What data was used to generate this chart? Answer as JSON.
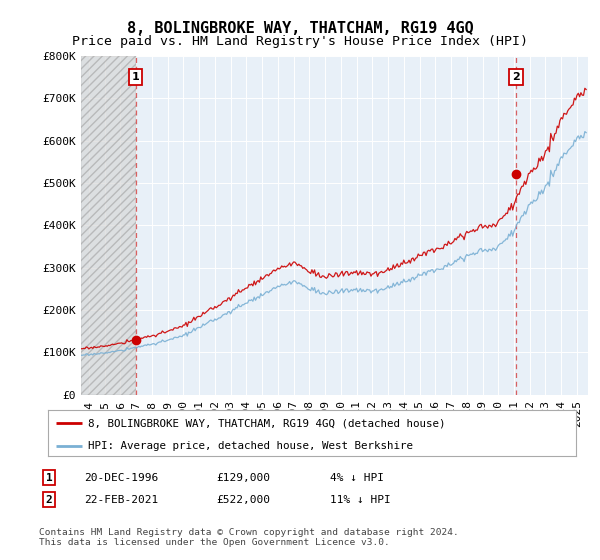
{
  "title": "8, BOLINGBROKE WAY, THATCHAM, RG19 4GQ",
  "subtitle": "Price paid vs. HM Land Registry's House Price Index (HPI)",
  "ylim": [
    0,
    800000
  ],
  "yticks": [
    0,
    100000,
    200000,
    300000,
    400000,
    500000,
    600000,
    700000,
    800000
  ],
  "ytick_labels": [
    "£0",
    "£100K",
    "£200K",
    "£300K",
    "£400K",
    "£500K",
    "£600K",
    "£700K",
    "£800K"
  ],
  "xlim_start": 1993.5,
  "xlim_end": 2025.7,
  "sale1_x": 1996.97,
  "sale1_y": 129000,
  "sale2_x": 2021.12,
  "sale2_y": 522000,
  "sale_color": "#cc0000",
  "hpi_color": "#7ab0d4",
  "legend_sale_label": "8, BOLINGBROKE WAY, THATCHAM, RG19 4GQ (detached house)",
  "legend_hpi_label": "HPI: Average price, detached house, West Berkshire",
  "ann1_label": "1",
  "ann1_date": "20-DEC-1996",
  "ann1_price": "£129,000",
  "ann1_hpi": "4% ↓ HPI",
  "ann2_label": "2",
  "ann2_date": "22-FEB-2021",
  "ann2_price": "£522,000",
  "ann2_hpi": "11% ↓ HPI",
  "footer": "Contains HM Land Registry data © Crown copyright and database right 2024.\nThis data is licensed under the Open Government Licence v3.0.",
  "background_color": "#ffffff",
  "plot_bg_color": "#e8f0f8",
  "grid_color": "#ffffff",
  "title_fontsize": 11,
  "subtitle_fontsize": 9.5,
  "tick_fontsize": 8,
  "xticks": [
    1994,
    1995,
    1996,
    1997,
    1998,
    1999,
    2000,
    2001,
    2002,
    2003,
    2004,
    2005,
    2006,
    2007,
    2008,
    2009,
    2010,
    2011,
    2012,
    2013,
    2014,
    2015,
    2016,
    2017,
    2018,
    2019,
    2020,
    2021,
    2022,
    2023,
    2024,
    2025
  ],
  "hpi_base_years": [
    1993,
    1994,
    1995,
    1996,
    1997,
    1998,
    1999,
    2000,
    2001,
    2002,
    2003,
    2004,
    2005,
    2006,
    2007,
    2008,
    2009,
    2010,
    2011,
    2012,
    2013,
    2014,
    2015,
    2016,
    2017,
    2018,
    2019,
    2020,
    2021,
    2022,
    2023,
    2024,
    2025
  ],
  "hpi_base_vals": [
    92000,
    95000,
    99000,
    104000,
    112000,
    120000,
    128000,
    140000,
    158000,
    178000,
    196000,
    218000,
    236000,
    254000,
    268000,
    252000,
    238000,
    245000,
    248000,
    244000,
    252000,
    268000,
    282000,
    295000,
    312000,
    328000,
    340000,
    348000,
    388000,
    450000,
    490000,
    560000,
    600000
  ]
}
